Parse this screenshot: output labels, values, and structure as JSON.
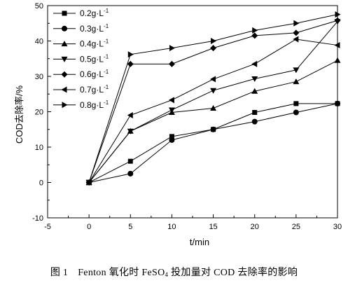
{
  "chart_data": {
    "type": "line",
    "xlabel": "t/min",
    "ylabel": "COD去除率/%",
    "xlim": [
      -5,
      30
    ],
    "ylim": [
      -10,
      50
    ],
    "xticks": [
      -5,
      0,
      5,
      10,
      15,
      20,
      25,
      30
    ],
    "yticks": [
      -10,
      0,
      10,
      20,
      30,
      40,
      50
    ],
    "grid": false,
    "legend_position": "top-left",
    "x": [
      0,
      5,
      10,
      15,
      20,
      25,
      30
    ],
    "series": [
      {
        "name": "0.2g·L",
        "unit_sup": "-1",
        "marker": "square",
        "values": [
          0,
          6.0,
          13.0,
          15.0,
          19.8,
          22.3,
          22.3
        ]
      },
      {
        "name": "0.3g·L",
        "unit_sup": "-1",
        "marker": "circle",
        "values": [
          0,
          2.5,
          12.0,
          15.0,
          17.2,
          19.8,
          22.3
        ]
      },
      {
        "name": "0.4g·L",
        "unit_sup": "-1",
        "marker": "triangle-up",
        "values": [
          0,
          14.5,
          19.8,
          21.0,
          25.8,
          28.5,
          34.5
        ]
      },
      {
        "name": "0.5g·L",
        "unit_sup": "-1",
        "marker": "triangle-down",
        "values": [
          0,
          14.5,
          20.5,
          26.0,
          29.3,
          31.8,
          45.5
        ]
      },
      {
        "name": "0.6g·L",
        "unit_sup": "-1",
        "marker": "diamond",
        "values": [
          0,
          33.5,
          33.5,
          38.0,
          41.5,
          42.3,
          45.8
        ]
      },
      {
        "name": "0.7g·L",
        "unit_sup": "-1",
        "marker": "triangle-left",
        "values": [
          0,
          19.0,
          23.3,
          29.2,
          33.5,
          40.5,
          38.8
        ]
      },
      {
        "name": "0.8g·L",
        "unit_sup": "-1",
        "marker": "triangle-right",
        "values": [
          0,
          36.2,
          38.0,
          40.0,
          43.0,
          45.0,
          47.5
        ]
      }
    ]
  },
  "caption": {
    "figure_number": "图 1",
    "text_before": "Fenton 氧化时 FeSO",
    "subscript": "4",
    "text_after": " 投加量对 COD 去除率的影响"
  }
}
